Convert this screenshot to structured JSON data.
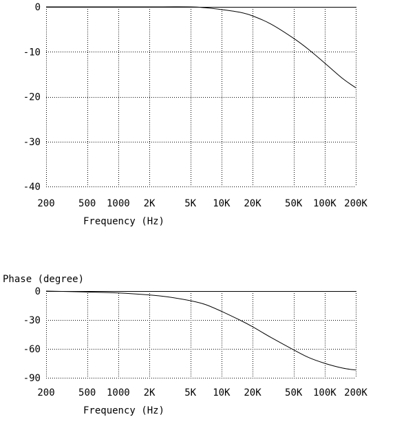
{
  "chart_data": [
    {
      "type": "line",
      "title": "",
      "xlabel": "Frequency (Hz)",
      "ylabel": "",
      "x_scale": "log",
      "xlim": [
        200,
        200000
      ],
      "ylim": [
        -40,
        0
      ],
      "grid": true,
      "x_ticks": [
        {
          "value": 200,
          "label": "200"
        },
        {
          "value": 500,
          "label": "500"
        },
        {
          "value": 1000,
          "label": "1000"
        },
        {
          "value": 2000,
          "label": "2K"
        },
        {
          "value": 5000,
          "label": "5K"
        },
        {
          "value": 10000,
          "label": "10K"
        },
        {
          "value": 20000,
          "label": "20K"
        },
        {
          "value": 50000,
          "label": "50K"
        },
        {
          "value": 100000,
          "label": "100K"
        },
        {
          "value": 200000,
          "label": "200K"
        }
      ],
      "y_ticks": [
        {
          "value": 0,
          "label": "0"
        },
        {
          "value": -10,
          "label": "-10"
        },
        {
          "value": -20,
          "label": "-20"
        },
        {
          "value": -30,
          "label": "-30"
        },
        {
          "value": -40,
          "label": "-40"
        }
      ],
      "series": [
        {
          "x": [
            200,
            500,
            1000,
            2000,
            5000,
            7000,
            10000,
            15000,
            20000,
            30000,
            50000,
            70000,
            100000,
            150000,
            200000
          ],
          "y": [
            0,
            0,
            0,
            0,
            0,
            -0.2,
            -0.6,
            -1.2,
            -2,
            -3.8,
            -7,
            -9.5,
            -12.5,
            -16,
            -18
          ]
        }
      ]
    },
    {
      "type": "line",
      "title": "",
      "xlabel": "Frequency (Hz)",
      "ylabel": "Phase (degree)",
      "x_scale": "log",
      "xlim": [
        200,
        200000
      ],
      "ylim": [
        -90,
        0
      ],
      "grid": true,
      "x_ticks": [
        {
          "value": 200,
          "label": "200"
        },
        {
          "value": 500,
          "label": "500"
        },
        {
          "value": 1000,
          "label": "1000"
        },
        {
          "value": 2000,
          "label": "2K"
        },
        {
          "value": 5000,
          "label": "5K"
        },
        {
          "value": 10000,
          "label": "10K"
        },
        {
          "value": 20000,
          "label": "20K"
        },
        {
          "value": 50000,
          "label": "50K"
        },
        {
          "value": 100000,
          "label": "100K"
        },
        {
          "value": 200000,
          "label": "200K"
        }
      ],
      "y_ticks": [
        {
          "value": 0,
          "label": "0"
        },
        {
          "value": -30,
          "label": "-30"
        },
        {
          "value": -60,
          "label": "-60"
        },
        {
          "value": -90,
          "label": "-90"
        }
      ],
      "series": [
        {
          "x": [
            200,
            500,
            1000,
            2000,
            3000,
            5000,
            7000,
            10000,
            15000,
            20000,
            30000,
            50000,
            70000,
            100000,
            150000,
            200000
          ],
          "y": [
            0,
            -1,
            -2,
            -4,
            -6,
            -10,
            -14,
            -21,
            -30,
            -37,
            -48,
            -61,
            -69,
            -75,
            -80,
            -82
          ]
        }
      ]
    }
  ]
}
